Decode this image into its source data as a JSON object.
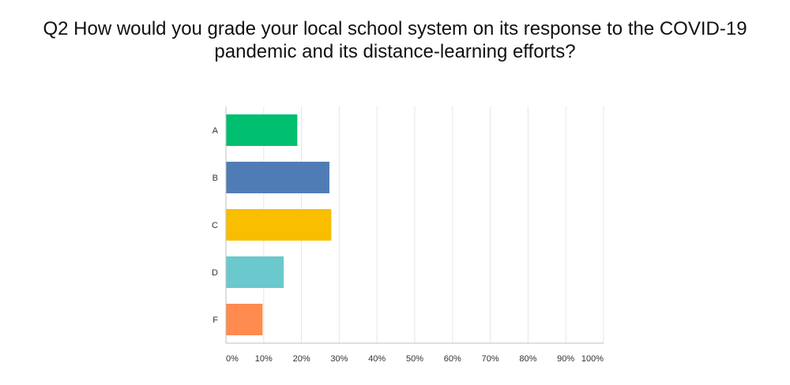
{
  "chart_data": {
    "type": "bar",
    "orientation": "horizontal",
    "title": "Q2 How would you grade your local school system on its response to the COVID-19 pandemic and its distance-learning efforts?",
    "categories": [
      "A",
      "B",
      "C",
      "D",
      "F"
    ],
    "values": [
      18.9,
      27.4,
      27.9,
      15.3,
      9.7
    ],
    "colors": [
      "#00bf6f",
      "#507cb6",
      "#f9be00",
      "#6bc8cd",
      "#ff8b4f"
    ],
    "xlim": [
      0,
      100
    ],
    "x_ticks": [
      "0%",
      "10%",
      "20%",
      "30%",
      "40%",
      "50%",
      "60%",
      "70%",
      "80%",
      "90%",
      "100%"
    ],
    "grid": true,
    "legend": "none"
  }
}
